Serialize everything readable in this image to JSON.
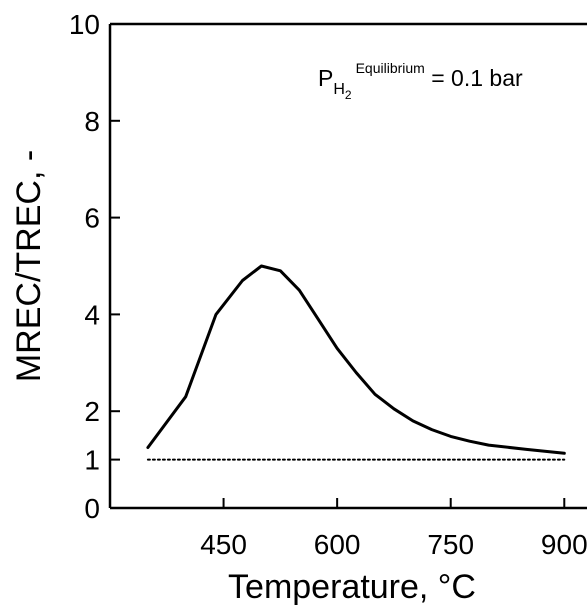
{
  "chart_data": {
    "type": "line",
    "title": "",
    "xlabel": "Temperature, °C",
    "ylabel": "MREC/TREC, -",
    "xlim": [
      300,
      930
    ],
    "ylim": [
      0,
      10
    ],
    "x_ticks": [
      450,
      600,
      750,
      900
    ],
    "y_ticks": [
      0,
      1,
      2,
      4,
      6,
      8,
      10
    ],
    "grid": false,
    "colors": {
      "series": "#000000",
      "reference": "#000000"
    },
    "annotation": {
      "symbol": "P",
      "subscript": "H",
      "sub_subscript": "2",
      "superscript": "Equilibrium",
      "text": " = 0.1 bar"
    },
    "series": [
      {
        "x": [
          350,
          400,
          440,
          475,
          500,
          525,
          550,
          575,
          600,
          625,
          650,
          675,
          700,
          725,
          750,
          775,
          800,
          850,
          900
        ],
        "y": [
          1.25,
          2.3,
          4.0,
          4.7,
          5.0,
          4.9,
          4.5,
          3.9,
          3.3,
          2.8,
          2.35,
          2.05,
          1.8,
          1.62,
          1.48,
          1.38,
          1.3,
          1.21,
          1.13
        ]
      },
      {
        "style": "dotted",
        "x": [
          350,
          900
        ],
        "y": [
          1,
          1
        ]
      }
    ]
  }
}
